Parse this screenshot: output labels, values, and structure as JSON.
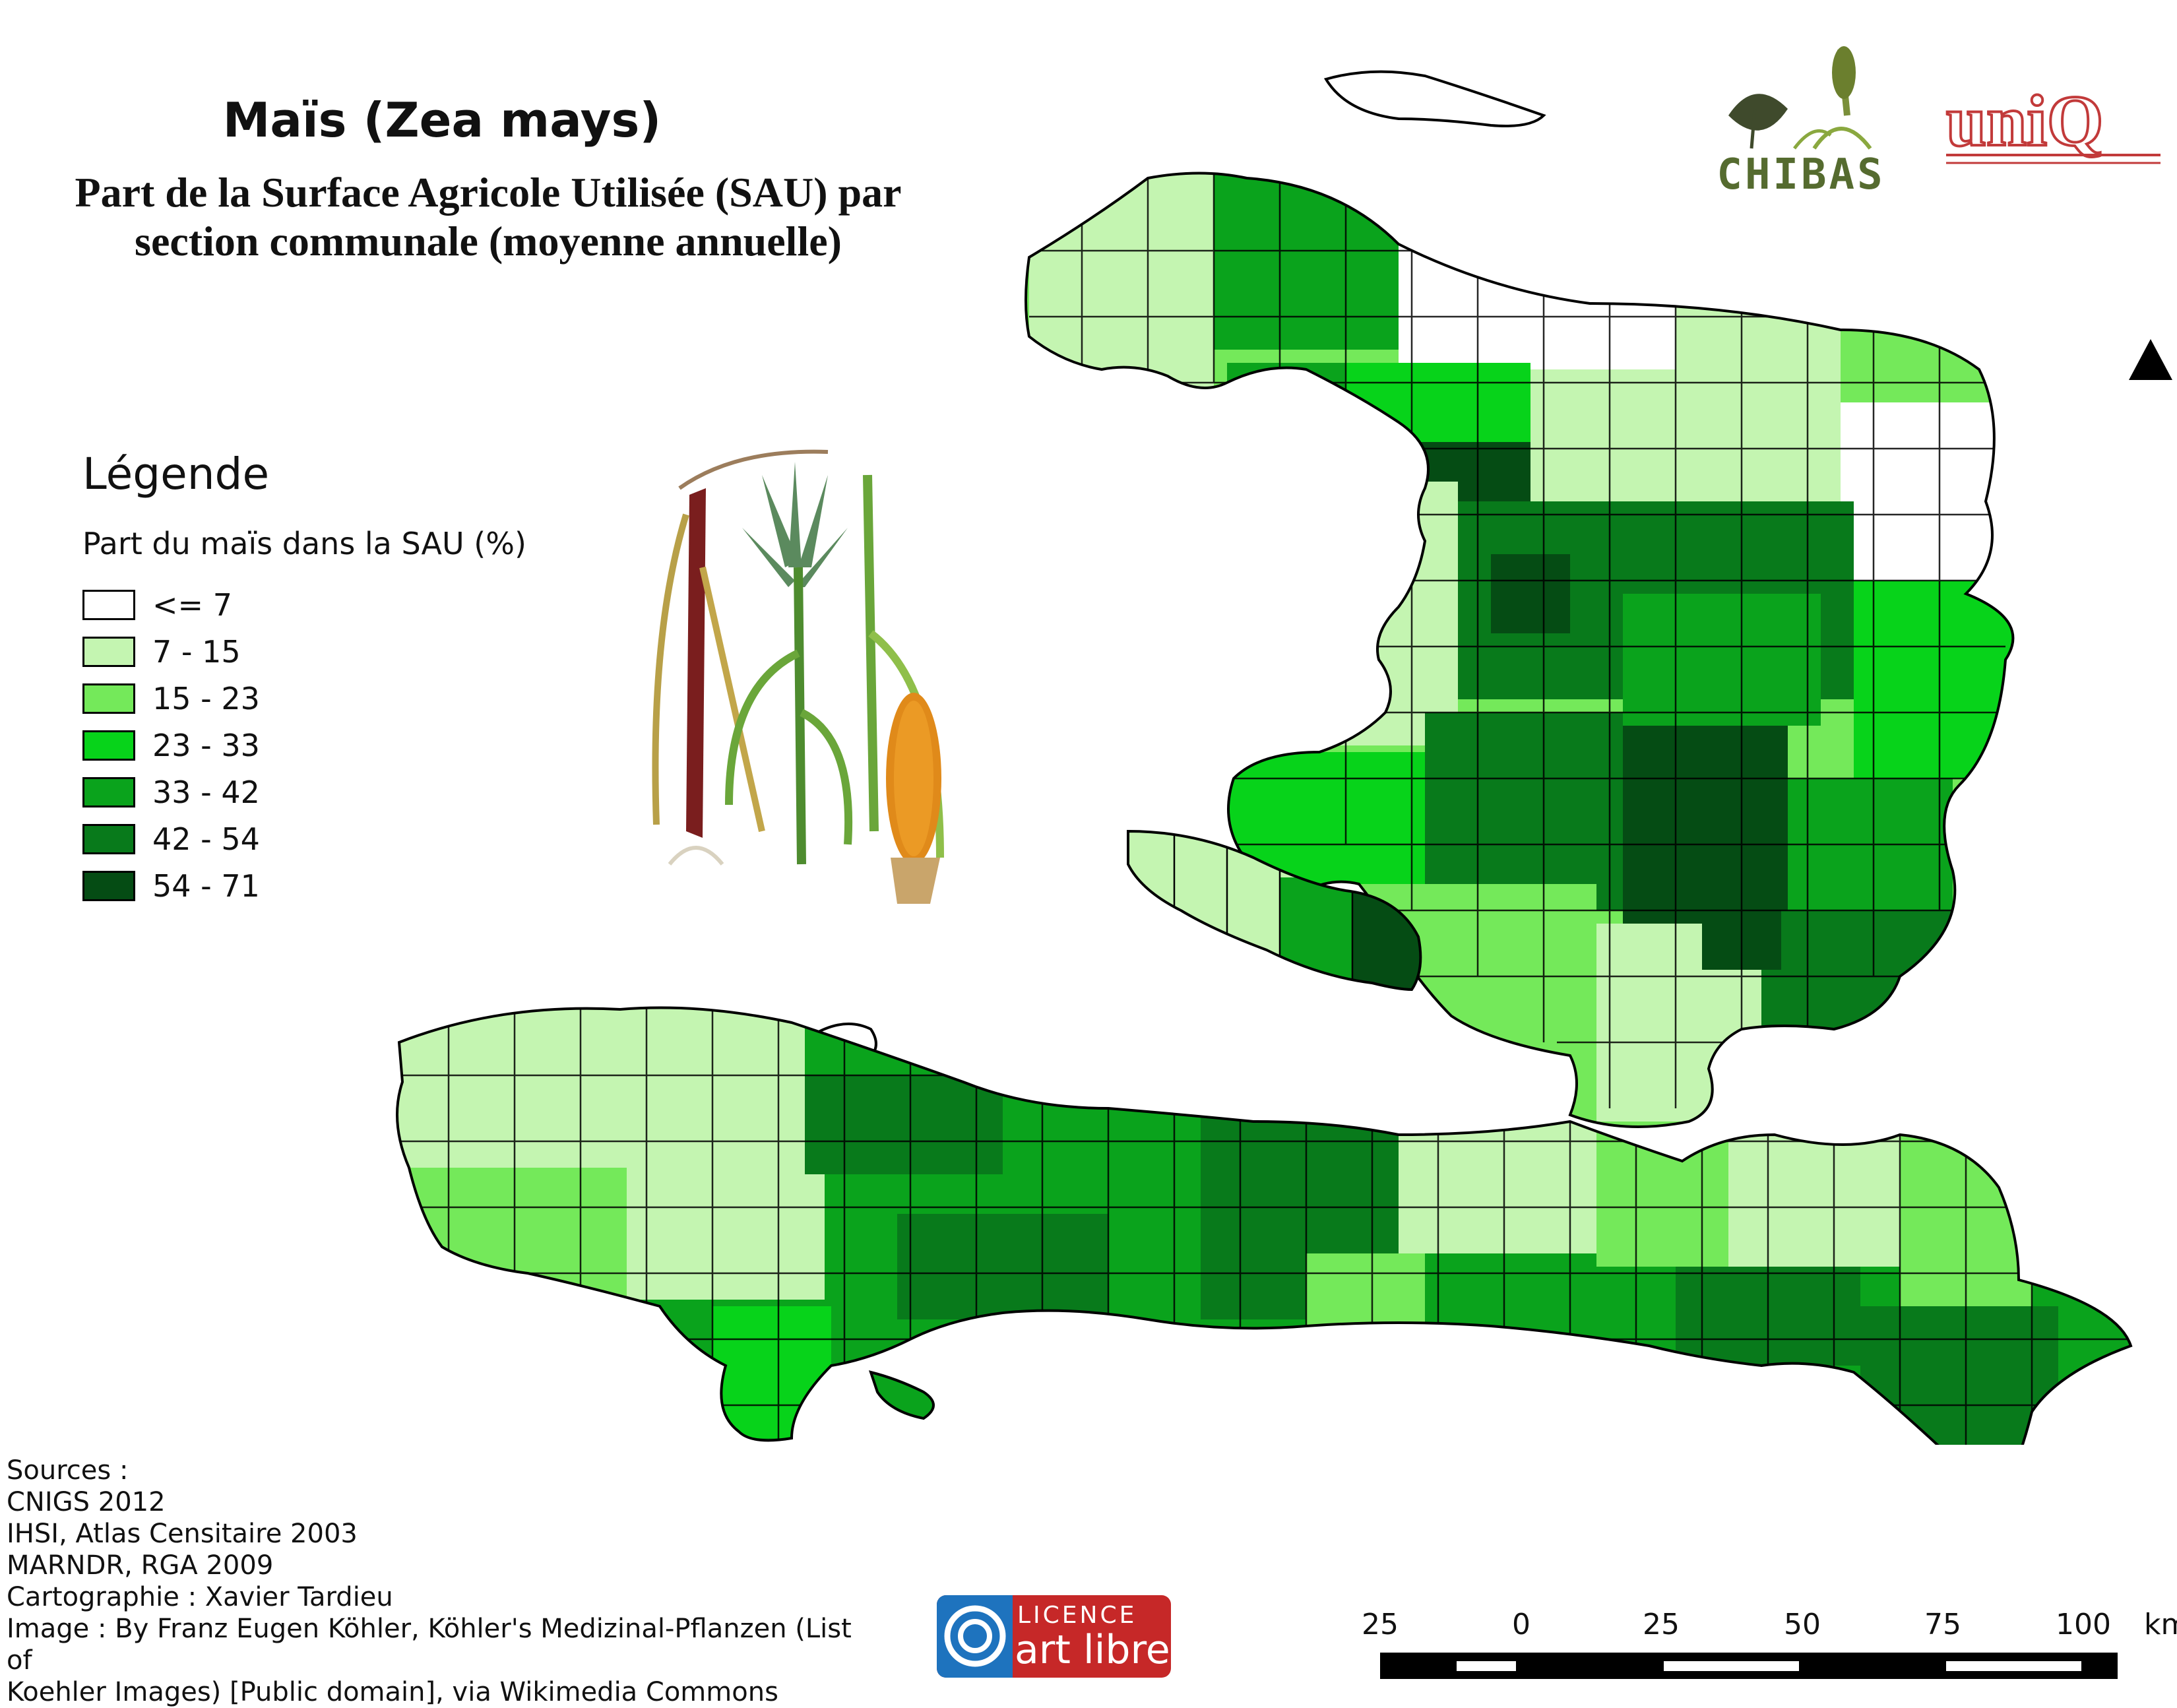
{
  "header": {
    "title": "Maïs (Zea mays)",
    "subtitle_line1": "Part de la Surface Agricole Utilisée (SAU) par",
    "subtitle_line2": "section communale (moyenne annuelle)"
  },
  "legend": {
    "title": "Légende",
    "subtitle": "Part du maïs dans la SAU (%)",
    "classes": [
      {
        "label": "<= 7",
        "color": "#ffffff"
      },
      {
        "label": "7 - 15",
        "color": "#c4f5b1"
      },
      {
        "label": "15 - 23",
        "color": "#74e95a"
      },
      {
        "label": "23 - 33",
        "color": "#07d31a"
      },
      {
        "label": "33 - 42",
        "color": "#0aa31c"
      },
      {
        "label": "42 - 54",
        "color": "#087a1b"
      },
      {
        "label": "54 - 71",
        "color": "#054c14"
      }
    ]
  },
  "logos": {
    "chibas": "CHIBAS",
    "uniq": "uniQ",
    "licence_line1": "LICENCE",
    "licence_line2": "art libre"
  },
  "sources": {
    "heading": "Sources :",
    "lines": [
      "CNIGS 2012",
      "IHSI, Atlas Censitaire 2003",
      "MARNDR, RGA 2009",
      "Cartographie : Xavier Tardieu",
      "Image : By Franz Eugen Köhler, Köhler's Medizinal-Pflanzen (List of",
      "Koehler Images) [Public domain], via Wikimedia Commons"
    ]
  },
  "scale_bar": {
    "labels": [
      "25",
      "0",
      "25",
      "50",
      "75",
      "100"
    ],
    "unit": "km"
  },
  "icons": {
    "north": "north-arrow-icon",
    "plant": "maize-illustration"
  }
}
